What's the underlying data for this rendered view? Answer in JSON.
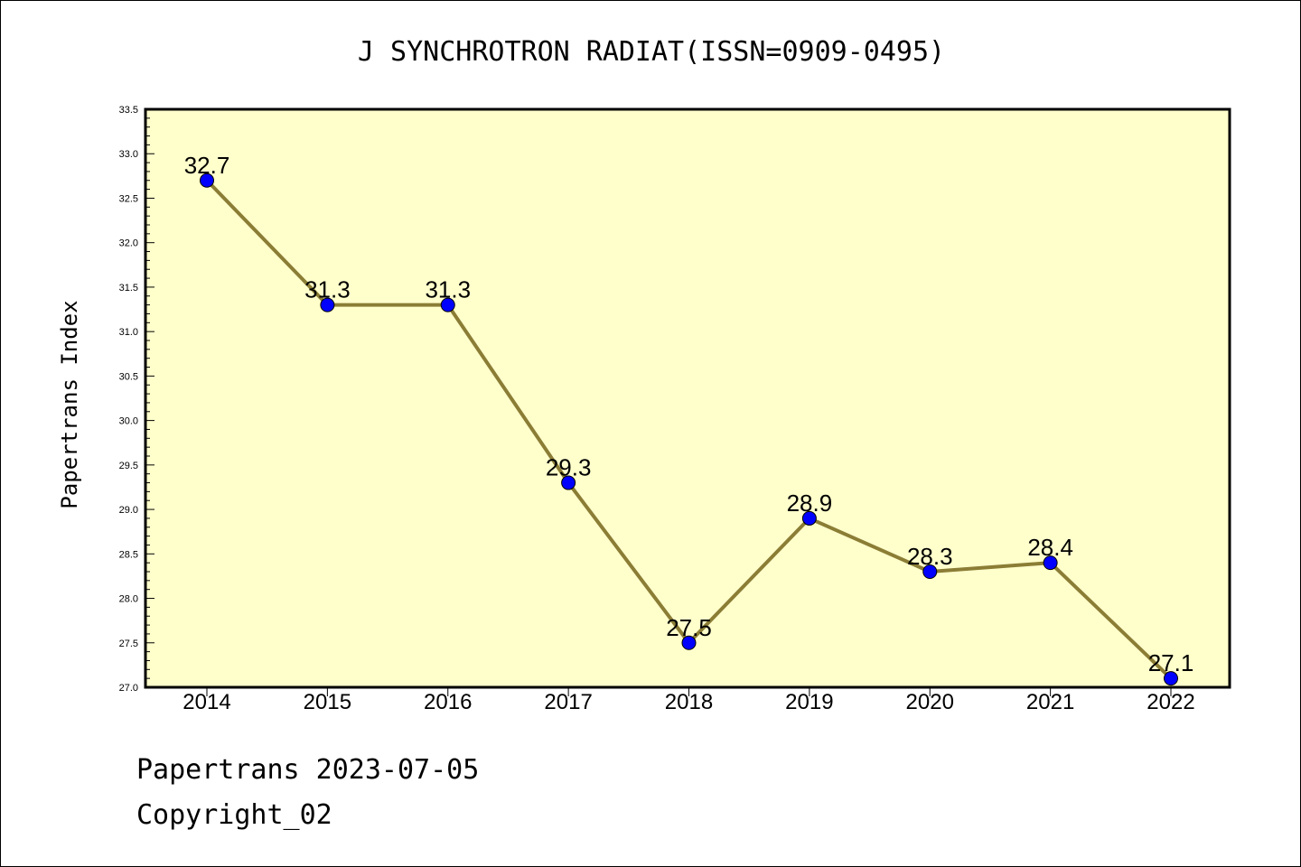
{
  "chart_data": {
    "type": "line",
    "title": "J SYNCHROTRON RADIAT(ISSN=0909-0495)",
    "xlabel": "",
    "ylabel": "Papertrans Index",
    "categories": [
      "2014",
      "2015",
      "2016",
      "2017",
      "2018",
      "2019",
      "2020",
      "2021",
      "2022"
    ],
    "values": [
      32.7,
      31.3,
      31.3,
      29.3,
      27.5,
      28.9,
      28.3,
      28.4,
      27.1
    ],
    "data_labels": [
      "32.7",
      "31.3",
      "31.3",
      "29.3",
      "27.5",
      "28.9",
      "28.3",
      "28.4",
      "27.1"
    ],
    "ylim": [
      27.0,
      33.5
    ],
    "yticks": [
      "27.0",
      "27.5",
      "28.0",
      "28.5",
      "29.0",
      "29.5",
      "30.0",
      "30.5",
      "31.0",
      "31.5",
      "32.0",
      "32.5",
      "33.0",
      "33.5"
    ],
    "grid": false,
    "legend": "none",
    "colors": {
      "plot_background": "#ffffcc",
      "line": "#8b7d35",
      "marker": "#0000ff"
    }
  },
  "footer": {
    "date_text": "Papertrans 2023-07-05",
    "copyright_text": "Copyright_02"
  }
}
